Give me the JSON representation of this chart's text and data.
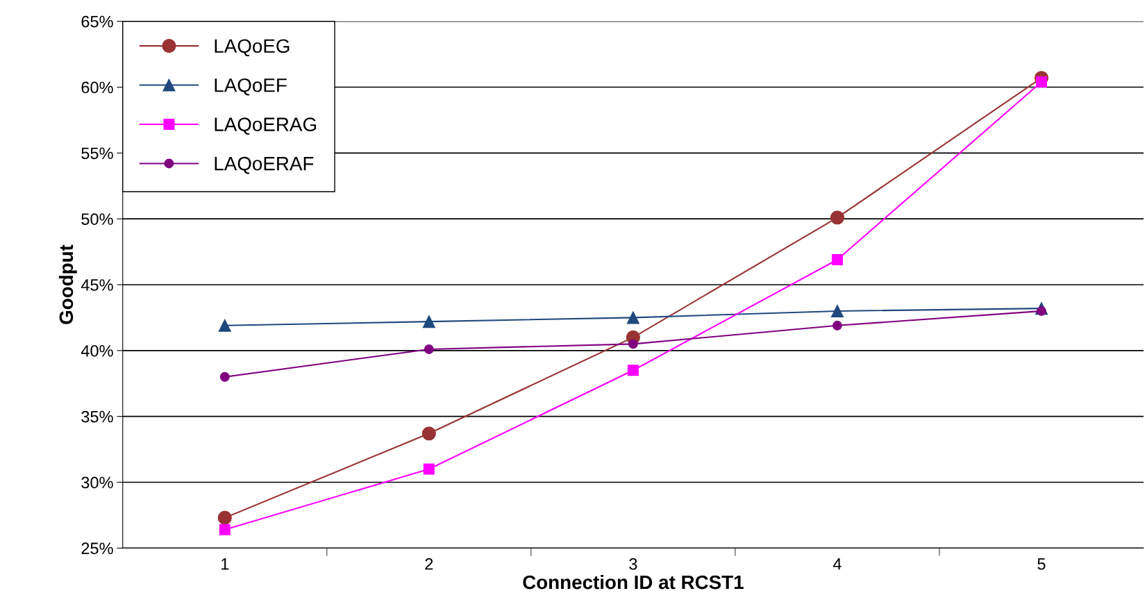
{
  "chart_data": {
    "type": "line",
    "xlabel": "Connection ID at RCST1",
    "ylabel": "Goodput",
    "categories": [
      "1",
      "2",
      "3",
      "4",
      "5"
    ],
    "ylim": [
      25,
      65
    ],
    "yticks": [
      {
        "value": 25,
        "label": "25%"
      },
      {
        "value": 30,
        "label": "30%"
      },
      {
        "value": 35,
        "label": "35%"
      },
      {
        "value": 40,
        "label": "40%"
      },
      {
        "value": 45,
        "label": "45%"
      },
      {
        "value": 50,
        "label": "50%"
      },
      {
        "value": 55,
        "label": "55%"
      },
      {
        "value": 60,
        "label": "60%"
      },
      {
        "value": 65,
        "label": "65%"
      }
    ],
    "grid": "y",
    "legend": "top left",
    "series": [
      {
        "name": "LAQoEG",
        "color": "#993333",
        "marker": "circle",
        "values": [
          27.3,
          33.7,
          41.0,
          50.1,
          60.7
        ]
      },
      {
        "name": "LAQoEF",
        "color": "#1f497d",
        "marker": "triangle",
        "values": [
          41.9,
          42.2,
          42.5,
          43.0,
          43.2
        ]
      },
      {
        "name": "LAQoERAG",
        "color": "#ff00ff",
        "marker": "square",
        "values": [
          26.4,
          31.0,
          38.5,
          46.9,
          60.4
        ]
      },
      {
        "name": "LAQoERAF",
        "color": "#800080",
        "marker": "circle",
        "values": [
          38.0,
          40.1,
          40.5,
          41.9,
          43.0
        ]
      }
    ]
  }
}
